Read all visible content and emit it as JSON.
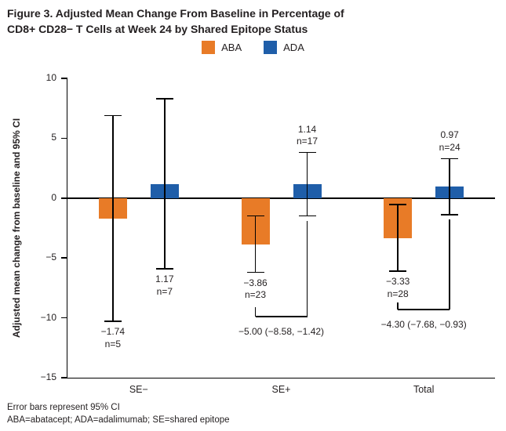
{
  "figure": {
    "title_line1": "Figure 3. Adjusted Mean Change From Baseline in Percentage of",
    "title_line2": "CD8+ CD28− T Cells at Week 24 by Shared Epitope Status"
  },
  "legend": [
    {
      "label": "ABA",
      "color": "#e87b27"
    },
    {
      "label": "ADA",
      "color": "#1f5ea9"
    }
  ],
  "chart_data": {
    "type": "bar",
    "title": "Adjusted Mean Change From Baseline in Percentage of CD8+ CD28− T Cells at Week 24 by Shared Epitope Status",
    "ylabel": "Adjusted mean change from baseline and 95% CI",
    "ylim": [
      -15,
      10
    ],
    "yticks": [
      10,
      5,
      0,
      -5,
      -10,
      -15
    ],
    "ytick_labels": [
      "10",
      "5",
      "0",
      "−5",
      "−10",
      "−15"
    ],
    "categories": [
      "SE−",
      "SE+",
      "Total"
    ],
    "series": [
      {
        "name": "ABA",
        "color": "#e87b27",
        "values": [
          -1.74,
          -3.86,
          -3.33
        ],
        "value_labels": [
          "−1.74",
          "−3.86",
          "−3.33"
        ],
        "n_labels": [
          "n=5",
          "n=23",
          "n=28"
        ],
        "ci_low": [
          -10.3,
          -6.2,
          -6.1
        ],
        "ci_high": [
          6.9,
          -1.5,
          -0.55
        ],
        "label_side": [
          "below",
          "below",
          "below"
        ]
      },
      {
        "name": "ADA",
        "color": "#1f5ea9",
        "values": [
          1.17,
          1.14,
          0.97
        ],
        "value_labels": [
          "1.17",
          "1.14",
          "0.97"
        ],
        "n_labels": [
          "n=7",
          "n=17",
          "n=24"
        ],
        "ci_low": [
          -5.9,
          -1.5,
          -1.4
        ],
        "ci_high": [
          8.3,
          3.8,
          3.3
        ],
        "label_side": [
          "below",
          "above",
          "above"
        ]
      }
    ],
    "comparisons": [
      {
        "category_index": 1,
        "text": "−5.00 (−8.58, −1.42)",
        "bracket_y": -9.9,
        "left_top": -9.1,
        "right_top": -1.9,
        "text_y": -10.7
      },
      {
        "category_index": 2,
        "text": "−4.30 (−7.68, −0.93)",
        "bracket_y": -9.3,
        "left_top": -8.7,
        "right_top": -1.8,
        "text_y": -10.1
      }
    ],
    "grid": false,
    "legend_position": "top-center"
  },
  "footnotes": [
    "Error bars represent 95% CI",
    "ABA=abatacept; ADA=adalimumab; SE=shared epitope"
  ]
}
